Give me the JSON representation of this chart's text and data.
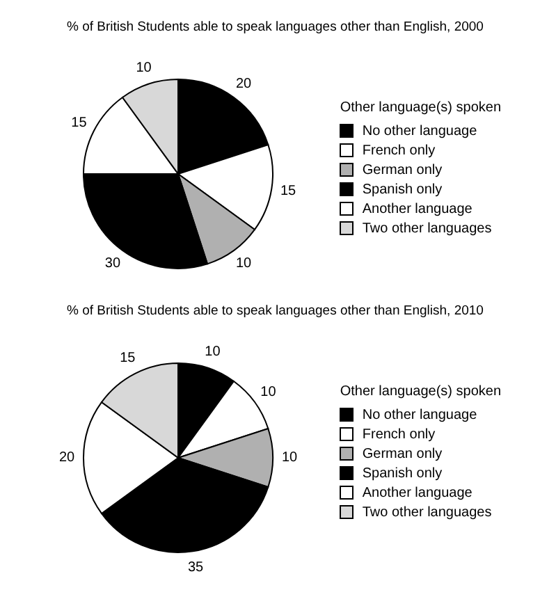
{
  "chart_data": [
    {
      "type": "pie",
      "title": "% of British Students able to speak languages other than English, 2000",
      "legend_title": "Other language(s) spoken",
      "categories": [
        "No other language",
        "French only",
        "German only",
        "Spanish only",
        "Another language",
        "Two other languages"
      ],
      "values": [
        20,
        15,
        10,
        30,
        15,
        10
      ],
      "colors": [
        "#000000",
        "#ffffff",
        "#b0b0b0",
        "#000000",
        "#ffffff",
        "#d8d8d8"
      ],
      "data_labels": true,
      "legend": "right"
    },
    {
      "type": "pie",
      "title": "% of British Students able to speak languages other than English, 2010",
      "legend_title": "Other language(s) spoken",
      "categories": [
        "No other language",
        "French only",
        "German only",
        "Spanish only",
        "Another language",
        "Two other languages"
      ],
      "values": [
        10,
        10,
        10,
        35,
        20,
        15
      ],
      "colors": [
        "#000000",
        "#ffffff",
        "#b0b0b0",
        "#000000",
        "#ffffff",
        "#d8d8d8"
      ],
      "data_labels": true,
      "legend": "right"
    }
  ]
}
